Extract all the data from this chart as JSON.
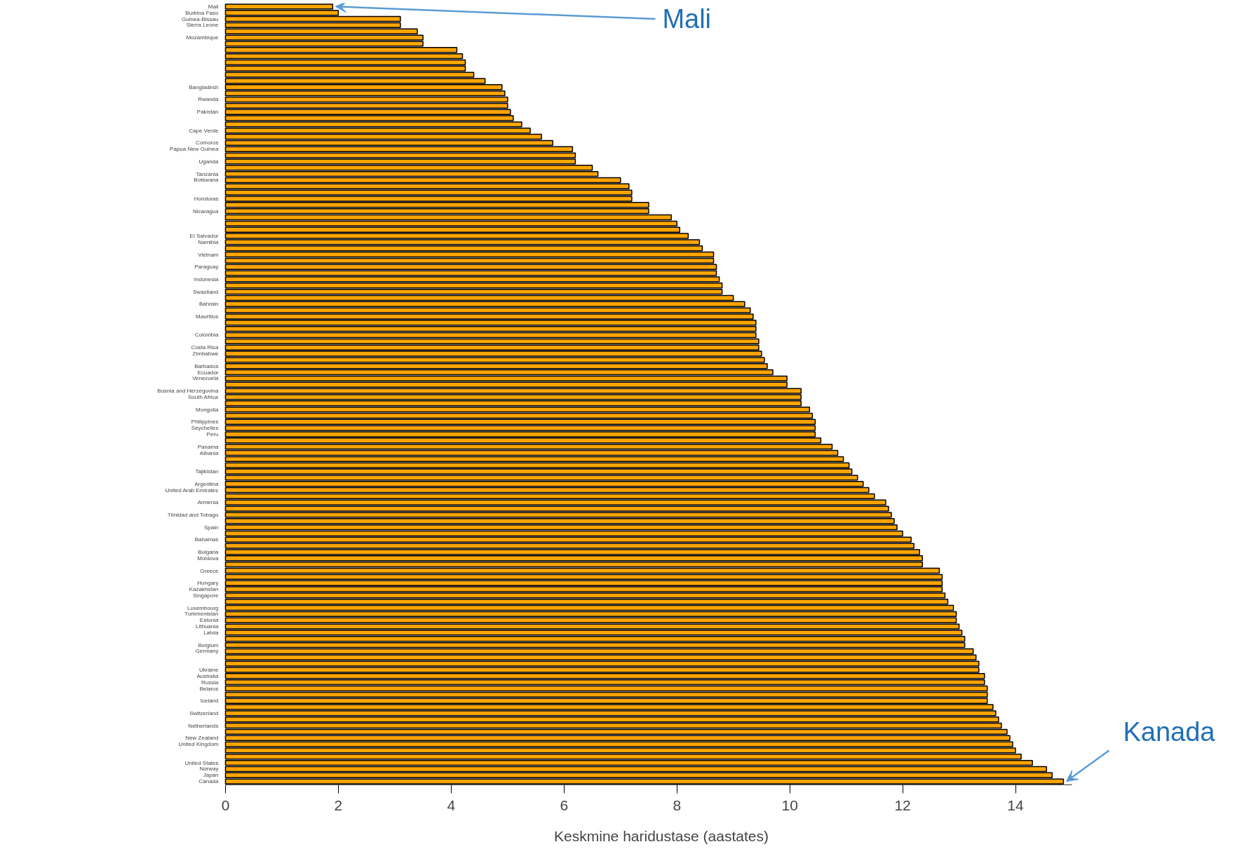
{
  "chart_data": {
    "type": "bar",
    "orientation": "horizontal",
    "xlabel": "Keskmine haridustase (aastates)",
    "categories": [
      "Mali",
      "Burkina Faso",
      "Guinea-Bissau",
      "Sierra Leone",
      null,
      "Mozambique",
      null,
      null,
      null,
      null,
      null,
      null,
      null,
      "Bangladesh",
      null,
      "Rwanda",
      null,
      "Pakistan",
      null,
      null,
      "Cape Verde",
      null,
      "Comoros",
      "Papua New Guinea",
      null,
      "Uganda",
      null,
      "Tanzania",
      "Botswana",
      null,
      null,
      "Honduras",
      null,
      "Nicaragua",
      null,
      null,
      null,
      "El Salvador",
      "Namibia",
      null,
      "Vietnam",
      null,
      "Paraguay",
      null,
      "Indonesia",
      null,
      "Swaziland",
      null,
      "Bahrain",
      null,
      "Mauritius",
      null,
      null,
      "Colombia",
      null,
      "Costa Rica",
      "Zimbabwe",
      null,
      "Barbados",
      "Ecuador",
      "Venezuela",
      null,
      "Bosnia and Herzegovina",
      "South Africa",
      null,
      "Mongolia",
      null,
      "Philippines",
      "Seychelles",
      "Peru",
      null,
      "Panama",
      "Albania",
      null,
      null,
      "Tajikistan",
      null,
      "Argentina",
      "United Arab Emirates",
      null,
      "Armenia",
      null,
      "Trinidad and Tobago",
      null,
      "Spain",
      null,
      "Bahamas",
      null,
      "Bulgaria",
      "Moldova",
      null,
      "Greece",
      null,
      "Hungary",
      "Kazakhstan",
      "Singapore",
      null,
      "Luxembourg",
      "Turkmenistan",
      "Estonia",
      "Lithuania",
      "Latvia",
      null,
      "Belgium",
      "Germany",
      null,
      null,
      "Ukraine",
      "Australia",
      "Russia",
      "Belarus",
      null,
      "Iceland",
      null,
      "Switzerland",
      null,
      "Netherlands",
      null,
      "New Zealand",
      "United Kingdom",
      null,
      null,
      "United States",
      "Norway",
      "Japan",
      "Canada"
    ],
    "values": [
      1.9,
      2.0,
      3.1,
      3.1,
      3.4,
      3.5,
      3.5,
      4.1,
      4.2,
      4.25,
      4.25,
      4.4,
      4.6,
      4.9,
      4.95,
      5.0,
      5.0,
      5.05,
      5.1,
      5.25,
      5.4,
      5.6,
      5.8,
      6.15,
      6.2,
      6.2,
      6.5,
      6.6,
      7.0,
      7.15,
      7.2,
      7.2,
      7.5,
      7.5,
      7.9,
      8.0,
      8.05,
      8.2,
      8.4,
      8.45,
      8.65,
      8.65,
      8.7,
      8.7,
      8.75,
      8.8,
      8.8,
      9.0,
      9.2,
      9.3,
      9.35,
      9.4,
      9.4,
      9.4,
      9.45,
      9.45,
      9.5,
      9.55,
      9.6,
      9.7,
      9.95,
      9.95,
      10.2,
      10.2,
      10.2,
      10.35,
      10.4,
      10.45,
      10.45,
      10.45,
      10.55,
      10.75,
      10.85,
      10.95,
      11.05,
      11.1,
      11.2,
      11.3,
      11.4,
      11.5,
      11.7,
      11.75,
      11.8,
      11.85,
      11.9,
      12.0,
      12.15,
      12.2,
      12.3,
      12.35,
      12.35,
      12.65,
      12.7,
      12.7,
      12.7,
      12.75,
      12.8,
      12.9,
      12.95,
      12.95,
      13.0,
      13.05,
      13.1,
      13.1,
      13.25,
      13.3,
      13.35,
      13.35,
      13.45,
      13.45,
      13.5,
      13.5,
      13.5,
      13.6,
      13.65,
      13.7,
      13.75,
      13.85,
      13.9,
      13.95,
      14.0,
      14.1,
      14.3,
      14.55,
      14.65,
      14.85
    ],
    "color": "#ffa500",
    "xlim": [
      0,
      15
    ],
    "xticks": [
      0,
      2,
      4,
      6,
      8,
      10,
      12,
      14
    ],
    "grid": false,
    "legend": false,
    "annotations": [
      {
        "text": "Mali",
        "x": 1.9,
        "y": "Mali"
      },
      {
        "text": "Kanada",
        "x": 14.85,
        "y": "Canada"
      }
    ]
  }
}
